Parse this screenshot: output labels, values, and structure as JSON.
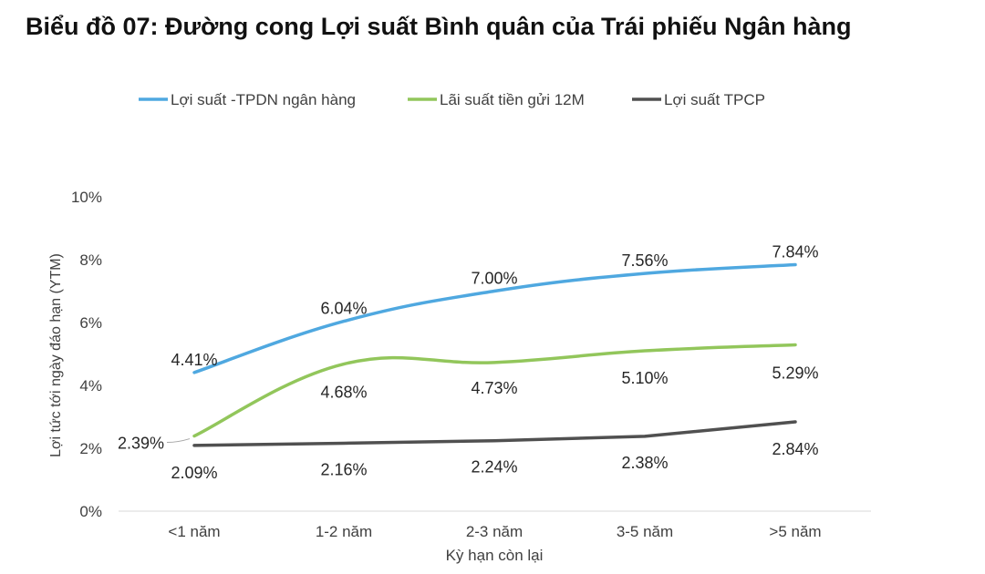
{
  "chart_data": {
    "type": "line",
    "title": "Biểu đồ 07: Đường cong Lợi suất Bình quân của Trái phiếu Ngân hàng",
    "xlabel": "Kỳ hạn còn lại",
    "ylabel": "Lợi tức tới ngày đáo hạn (YTM)",
    "categories": [
      "<1 năm",
      "1-2 năm",
      "2-3 năm",
      "3-5 năm",
      ">5 năm"
    ],
    "ylim": [
      0,
      10
    ],
    "yticks": [
      "0%",
      "2%",
      "4%",
      "6%",
      "8%",
      "10%"
    ],
    "grid": false,
    "legend_position": "top",
    "series": [
      {
        "name": "Lợi suất -TPDN ngân hàng",
        "color": "#4fa8e0",
        "values": [
          4.41,
          6.04,
          7.0,
          7.56,
          7.84
        ],
        "labels": [
          "4.41%",
          "6.04%",
          "7.00%",
          "7.56%",
          "7.84%"
        ]
      },
      {
        "name": "Lãi suất tiền gửi 12M",
        "color": "#92c65b",
        "values": [
          2.39,
          4.68,
          4.73,
          5.1,
          5.29
        ],
        "labels": [
          "2.39%",
          "4.68%",
          "4.73%",
          "5.10%",
          "5.29%"
        ]
      },
      {
        "name": "Lợi suất TPCP",
        "color": "#505050",
        "values": [
          2.09,
          2.16,
          2.24,
          2.38,
          2.84
        ],
        "labels": [
          "2.09%",
          "2.16%",
          "2.24%",
          "2.38%",
          "2.84%"
        ]
      }
    ]
  }
}
